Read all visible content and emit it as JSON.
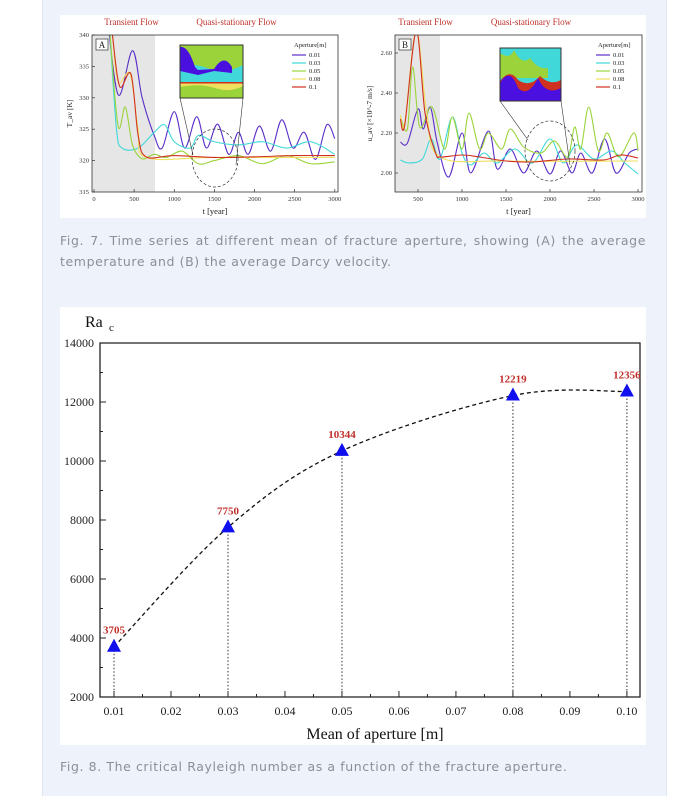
{
  "fig7": {
    "caption": "Fig. 7. Time series at different mean of fracture aperture, showing (A) the average temperature and (B) the average Darcy velocity.",
    "phase_labels": {
      "transient": "Transient Flow",
      "quasi": "Quasi-stationary Flow"
    },
    "legend_title": "Aperture[m]",
    "series_colors": [
      "#5a2dc8",
      "#40d8d8",
      "#9ad43a",
      "#f0e060",
      "#d03020"
    ]
  },
  "fig8": {
    "caption": "Fig. 8. The critical Rayleigh number as a function of the fracture aperture.",
    "marker_color": "#1010ee",
    "label_color": "#c0302a"
  },
  "chart_data": [
    {
      "type": "line",
      "panel": "A",
      "title": "",
      "xlabel": "t [year]",
      "ylabel": "T_av [K]",
      "xlim": [
        -25,
        3040
      ],
      "ylim": [
        315,
        340
      ],
      "xticks": [
        "0",
        "500",
        "1000",
        "1500",
        "2000",
        "2500",
        "3000"
      ],
      "xtick_values": [
        0,
        500,
        1000,
        1500,
        2000,
        2500,
        3000
      ],
      "yticks": [
        "315",
        "320",
        "325",
        "330",
        "335",
        "340"
      ],
      "ytick_values": [
        315,
        320,
        325,
        330,
        335,
        340
      ],
      "transient_end": 760,
      "legend": "top-right",
      "series": [
        {
          "name": "0.01",
          "points": [
            [
              150,
              345
            ],
            [
              300,
              330.5
            ],
            [
              480,
              337.5
            ],
            [
              600,
              330
            ],
            [
              750,
              324
            ],
            [
              850,
              322
            ],
            [
              1000,
              327.8
            ],
            [
              1130,
              322
            ],
            [
              1280,
              327
            ],
            [
              1400,
              322
            ],
            [
              1540,
              325.8
            ],
            [
              1680,
              321
            ],
            [
              1800,
              324.5
            ],
            [
              1920,
              321
            ],
            [
              2060,
              325.5
            ],
            [
              2200,
              321.5
            ],
            [
              2340,
              326.5
            ],
            [
              2480,
              322
            ],
            [
              2620,
              324.5
            ],
            [
              2760,
              320.2
            ],
            [
              2900,
              325.7
            ],
            [
              3000,
              323.5
            ]
          ]
        },
        {
          "name": "0.03",
          "points": [
            [
              200,
              340
            ],
            [
              280,
              325
            ],
            [
              350,
              322
            ],
            [
              550,
              322
            ],
            [
              750,
              324.5
            ],
            [
              880,
              325.7
            ],
            [
              1000,
              323
            ],
            [
              1200,
              322
            ],
            [
              1300,
              324
            ],
            [
              1500,
              323
            ],
            [
              1800,
              322.5
            ],
            [
              2100,
              323
            ],
            [
              2400,
              322
            ],
            [
              2700,
              323
            ],
            [
              3000,
              321
            ]
          ]
        },
        {
          "name": "0.05",
          "points": [
            [
              200,
              340
            ],
            [
              300,
              325.5
            ],
            [
              390,
              328.5
            ],
            [
              480,
              322.5
            ],
            [
              600,
              320.3
            ],
            [
              750,
              321
            ],
            [
              900,
              320.5
            ],
            [
              1100,
              321.5
            ],
            [
              1300,
              319.5
            ],
            [
              1500,
              320
            ],
            [
              1800,
              320.8
            ],
            [
              2100,
              319.5
            ],
            [
              2400,
              320.8
            ],
            [
              2700,
              319.5
            ],
            [
              3000,
              319.8
            ]
          ]
        },
        {
          "name": "0.08",
          "points": [
            [
              230,
              340
            ],
            [
              300,
              332.5
            ],
            [
              450,
              333.8
            ],
            [
              550,
              325
            ],
            [
              650,
              320.5
            ],
            [
              1500,
              320.5
            ],
            [
              3000,
              320.5
            ]
          ]
        },
        {
          "name": "0.1",
          "points": [
            [
              230,
              340
            ],
            [
              320,
              331.8
            ],
            [
              460,
              333.8
            ],
            [
              550,
              324
            ],
            [
              650,
              320.6
            ],
            [
              1000,
              320.8
            ],
            [
              1500,
              320.5
            ],
            [
              2000,
              320.6
            ],
            [
              2500,
              320.8
            ],
            [
              3000,
              320.8
            ]
          ]
        }
      ],
      "panel_label": "A"
    },
    {
      "type": "line",
      "panel": "B",
      "title": "",
      "xlabel": "t [year]",
      "ylabel": "u_av [×10^-7 m/s]",
      "xlim": [
        239,
        3045
      ],
      "ylim": [
        1.905,
        2.69
      ],
      "xticks": [
        "500",
        "1000",
        "1500",
        "2000",
        "2500",
        "3000"
      ],
      "xtick_values": [
        500,
        1000,
        1500,
        2000,
        2500,
        3000
      ],
      "yticks": [
        "2.00",
        "2.20",
        "2.40",
        "2.60"
      ],
      "ytick_values": [
        2.0,
        2.2,
        2.4,
        2.6
      ],
      "transient_end": 750,
      "legend": "top-right",
      "series": [
        {
          "name": "0.01",
          "points": [
            [
              300,
              2.155
            ],
            [
              380,
              2.15
            ],
            [
              500,
              2.32
            ],
            [
              560,
              2.22
            ],
            [
              640,
              2.33
            ],
            [
              720,
              2.15
            ],
            [
              850,
              1.98
            ],
            [
              1000,
              2.2
            ],
            [
              1100,
              2.0
            ],
            [
              1300,
              2.21
            ],
            [
              1400,
              2.02
            ],
            [
              1550,
              2.12
            ],
            [
              1700,
              2.0
            ],
            [
              1850,
              2.11
            ],
            [
              2000,
              1.995
            ],
            [
              2120,
              2.11
            ],
            [
              2250,
              2.0
            ],
            [
              2350,
              2.1
            ],
            [
              2480,
              2.0
            ],
            [
              2620,
              2.17
            ],
            [
              2750,
              2.0
            ],
            [
              2900,
              2.1
            ],
            [
              3000,
              2.12
            ]
          ]
        },
        {
          "name": "0.03",
          "points": [
            [
              300,
              2.065
            ],
            [
              400,
              2.05
            ],
            [
              550,
              2.07
            ],
            [
              650,
              2.17
            ],
            [
              750,
              2.07
            ],
            [
              890,
              2.28
            ],
            [
              1000,
              2.1
            ],
            [
              1100,
              2.04
            ],
            [
              1250,
              2.1
            ],
            [
              1400,
              2.05
            ],
            [
              1600,
              2.12
            ],
            [
              1800,
              2.05
            ],
            [
              2000,
              2.17
            ],
            [
              2150,
              2.05
            ],
            [
              2300,
              2.14
            ],
            [
              2500,
              2.07
            ],
            [
              2700,
              2.11
            ],
            [
              2850,
              2.05
            ],
            [
              3000,
              1.995
            ]
          ]
        },
        {
          "name": "0.05",
          "points": [
            [
              300,
              2.28
            ],
            [
              380,
              2.22
            ],
            [
              440,
              2.53
            ],
            [
              520,
              2.23
            ],
            [
              660,
              2.33
            ],
            [
              800,
              2.12
            ],
            [
              890,
              2.28
            ],
            [
              1000,
              2.12
            ],
            [
              1080,
              2.3
            ],
            [
              1200,
              2.12
            ],
            [
              1300,
              2.2
            ],
            [
              1450,
              2.12
            ],
            [
              1550,
              2.22
            ],
            [
              1700,
              2.13
            ],
            [
              1900,
              2.1
            ],
            [
              2050,
              2.16
            ],
            [
              2200,
              2.08
            ],
            [
              2280,
              2.23
            ],
            [
              2350,
              2.12
            ],
            [
              2440,
              2.33
            ],
            [
              2550,
              2.11
            ],
            [
              2650,
              2.2
            ],
            [
              2780,
              2.08
            ],
            [
              2950,
              2.2
            ],
            [
              3000,
              2.11
            ]
          ]
        },
        {
          "name": "0.08",
          "points": [
            [
              300,
              2.29
            ],
            [
              350,
              2.25
            ],
            [
              480,
              2.71
            ],
            [
              600,
              2.3
            ],
            [
              750,
              2.08
            ],
            [
              1500,
              2.06
            ],
            [
              3000,
              2.06
            ]
          ]
        },
        {
          "name": "0.1",
          "points": [
            [
              300,
              2.27
            ],
            [
              350,
              2.24
            ],
            [
              480,
              2.71
            ],
            [
              580,
              2.3
            ],
            [
              700,
              2.1
            ],
            [
              760,
              2.08
            ],
            [
              1000,
              2.09
            ],
            [
              1200,
              2.08
            ],
            [
              1500,
              2.06
            ],
            [
              1800,
              2.055
            ],
            [
              2200,
              2.07
            ],
            [
              2600,
              2.065
            ],
            [
              2800,
              2.09
            ],
            [
              3000,
              2.075
            ]
          ]
        }
      ],
      "panel_label": "B"
    },
    {
      "type": "scatter",
      "title": "",
      "xlabel": "Mean of aperture [m]",
      "ylabel": "Ra",
      "ylabel_sub": "c",
      "xlim": [
        0.00754,
        0.1023
      ],
      "ylim": [
        2000,
        14000
      ],
      "xticks": [
        "0.01",
        "0.02",
        "0.03",
        "0.04",
        "0.05",
        "0.06",
        "0.07",
        "0.08",
        "0.09",
        "0.10"
      ],
      "xtick_values": [
        0.01,
        0.02,
        0.03,
        0.04,
        0.05,
        0.06,
        0.07,
        0.08,
        0.09,
        0.1
      ],
      "yticks": [
        "2000",
        "4000",
        "6000",
        "8000",
        "10000",
        "12000",
        "14000"
      ],
      "ytick_values": [
        2000,
        4000,
        6000,
        8000,
        10000,
        12000,
        14000
      ],
      "x": [
        0.01,
        0.03,
        0.05,
        0.08,
        0.1
      ],
      "values": [
        3705,
        7750,
        10344,
        12219,
        12356
      ],
      "data_labels": [
        "3705",
        "7750",
        "10344",
        "12219",
        "12356"
      ],
      "fit": "dashed quadratic trend"
    }
  ]
}
